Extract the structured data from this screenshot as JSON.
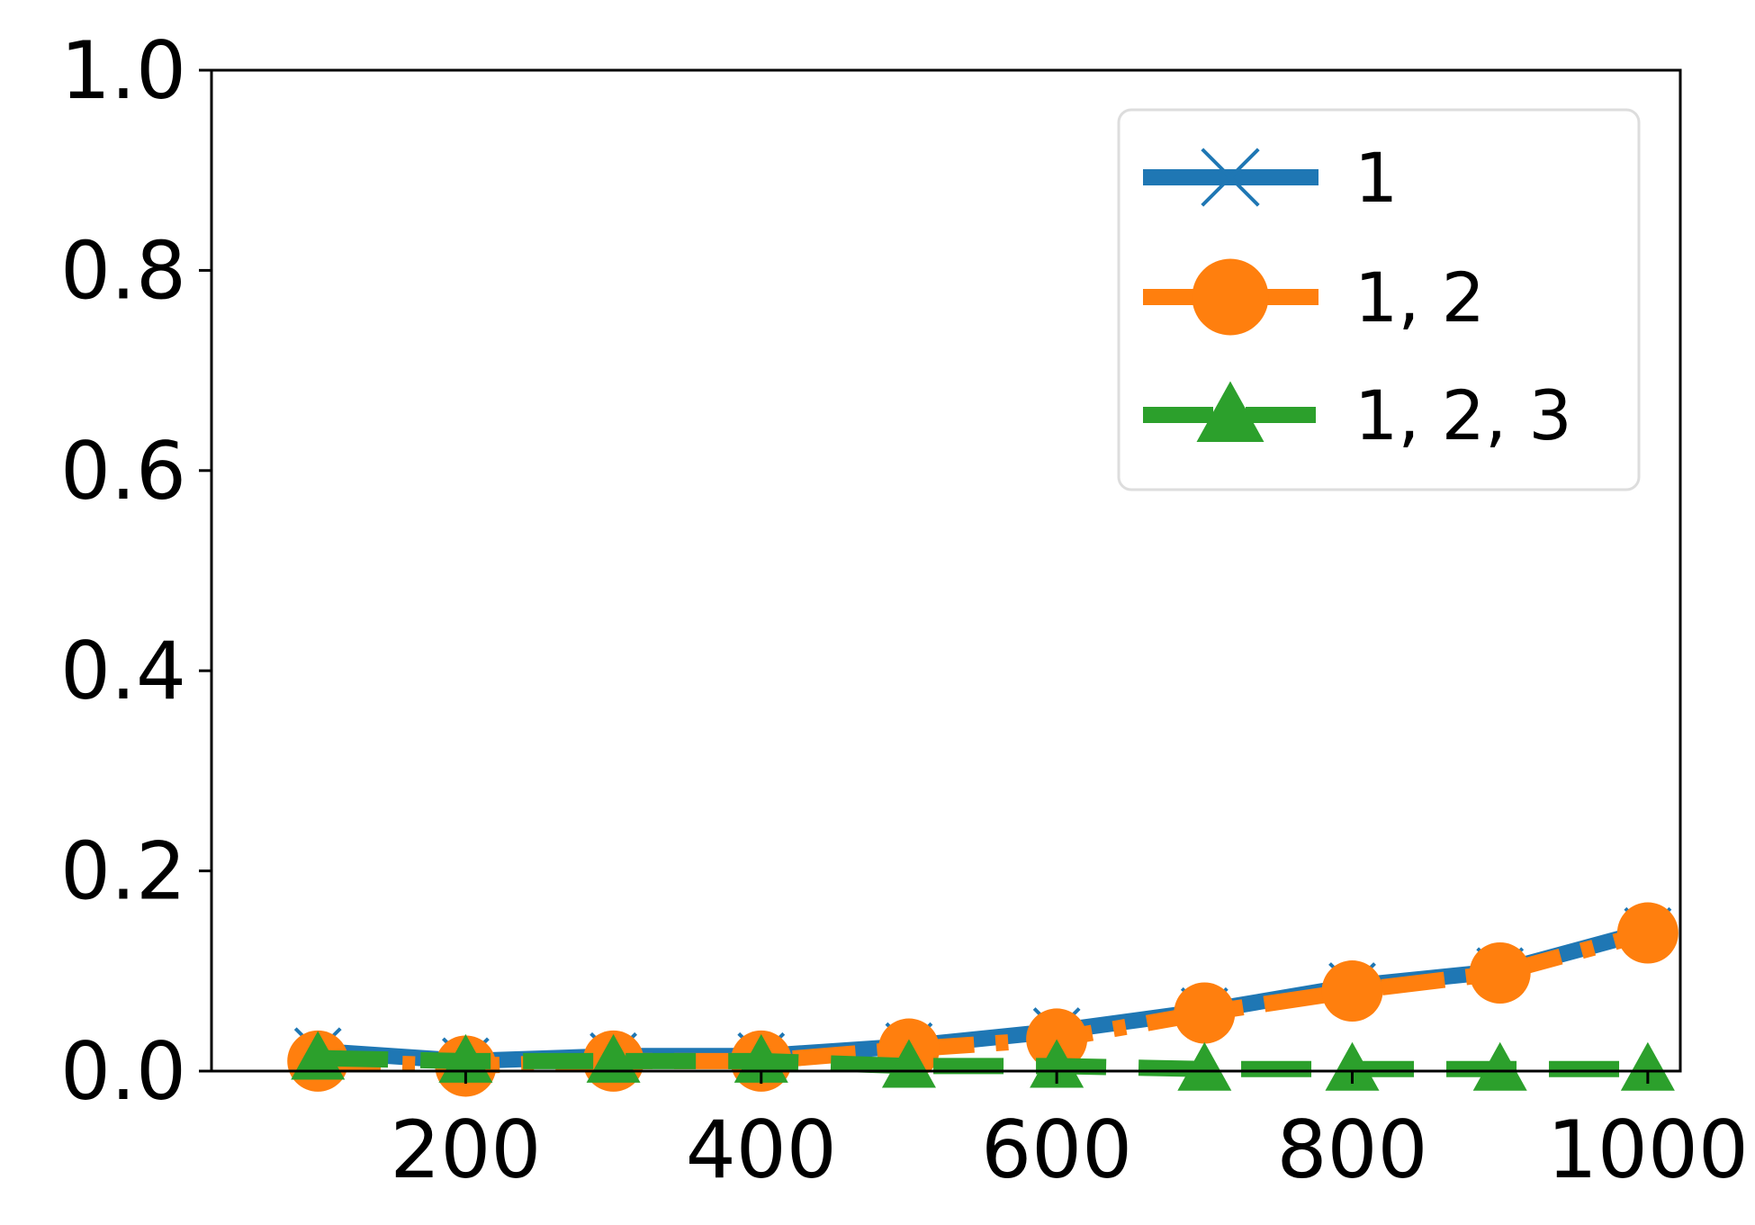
{
  "chart_data": {
    "type": "line",
    "title": "",
    "xlabel": "",
    "ylabel": "",
    "x": [
      100,
      200,
      300,
      400,
      500,
      600,
      700,
      800,
      900,
      1000
    ],
    "xlim": [
      28,
      1022
    ],
    "ylim": [
      0.0,
      1.0
    ],
    "x_ticks": [
      200,
      400,
      600,
      800,
      1000
    ],
    "x_tick_labels": [
      "200",
      "400",
      "600",
      "800",
      "1000"
    ],
    "y_ticks": [
      0.0,
      0.2,
      0.4,
      0.6,
      0.8,
      1.0
    ],
    "y_tick_labels": [
      "0.0",
      "0.2",
      "0.4",
      "0.6",
      "0.8",
      "1.0"
    ],
    "grid": false,
    "legend_position": "top-right",
    "series": [
      {
        "name": "1",
        "color": "#1f77b4",
        "marker": "x",
        "line_style": "solid",
        "values": [
          0.02,
          0.01,
          0.015,
          0.015,
          0.025,
          0.04,
          0.06,
          0.085,
          0.1,
          0.14
        ]
      },
      {
        "name": "1, 2",
        "color": "#ff7f0e",
        "marker": "circle",
        "line_style": "dashdot",
        "values": [
          0.01,
          0.005,
          0.01,
          0.01,
          0.022,
          0.032,
          0.058,
          0.08,
          0.098,
          0.138
        ]
      },
      {
        "name": "1, 2, 3",
        "color": "#2ca02c",
        "marker": "triangle",
        "line_style": "dashed",
        "values": [
          0.013,
          0.01,
          0.01,
          0.01,
          0.005,
          0.005,
          0.002,
          0.002,
          0.002,
          0.002
        ]
      }
    ]
  }
}
